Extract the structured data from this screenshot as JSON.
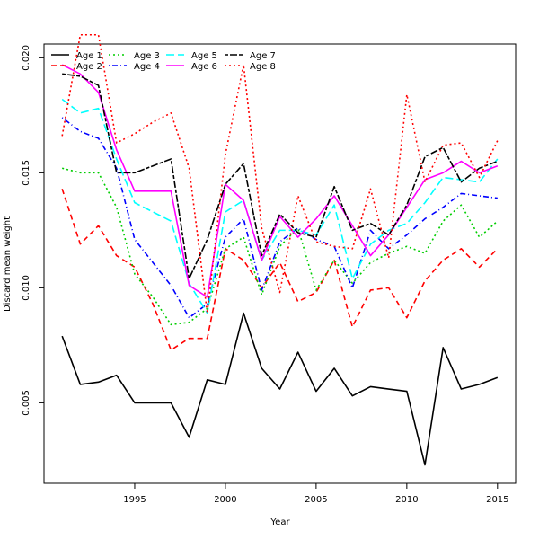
{
  "chart_data": {
    "type": "line",
    "title": "",
    "xlabel": "Year",
    "ylabel": "Discard mean weight",
    "xlim": [
      1990.0,
      2016.0
    ],
    "ylim": [
      0.0015,
      0.0206
    ],
    "xticks": [
      1995,
      2000,
      2005,
      2010,
      2015
    ],
    "xtick_labels": [
      "1995",
      "2000",
      "2005",
      "2010",
      "2015"
    ],
    "yticks": [
      0.005,
      0.01,
      0.015,
      0.02
    ],
    "ytick_labels": [
      "0.005",
      "0.010",
      "0.015",
      "0.020"
    ],
    "grid": false,
    "legend_position": "top-left",
    "x": [
      1991,
      1992,
      1993,
      1994,
      1995,
      1996,
      1997,
      1998,
      1999,
      2000,
      2001,
      2002,
      2003,
      2004,
      2005,
      2006,
      2007,
      2008,
      2009,
      2010,
      2011,
      2012,
      2013,
      2014,
      2015
    ],
    "series": [
      {
        "name": "Age 1",
        "color": "#000000",
        "dash": "solid",
        "values": [
          0.0079,
          0.0058,
          0.0059,
          0.0062,
          0.005,
          0.005,
          0.005,
          0.0035,
          0.006,
          0.0058,
          0.0089,
          0.0065,
          0.0056,
          0.0072,
          0.0055,
          0.0065,
          0.0053,
          0.0057,
          0.0056,
          0.0055,
          0.0023,
          0.0074,
          0.0056,
          0.0058,
          0.0061
        ]
      },
      {
        "name": "Age 2",
        "color": "#ff0000",
        "dash": "dashed",
        "values": [
          0.0143,
          0.0119,
          0.0127,
          0.0114,
          0.0109,
          0.0093,
          0.0073,
          0.0078,
          0.0078,
          0.0117,
          0.0112,
          0.01,
          0.0111,
          0.0094,
          0.0098,
          0.0112,
          0.0083,
          0.0099,
          0.01,
          0.0087,
          0.0103,
          0.0112,
          0.0117,
          0.0109,
          0.0117
        ]
      },
      {
        "name": "Age 3",
        "color": "#00cd00",
        "dash": "dotted",
        "values": [
          0.0152,
          0.015,
          0.015,
          0.0135,
          0.0106,
          0.0096,
          0.0084,
          0.0085,
          0.0091,
          0.0117,
          0.0122,
          0.0097,
          0.0118,
          0.0126,
          0.0099,
          0.0112,
          0.0102,
          0.0111,
          0.0115,
          0.0118,
          0.0115,
          0.0129,
          0.0136,
          0.0122,
          0.0129
        ]
      },
      {
        "name": "Age 4",
        "color": "#0000ff",
        "dash": "dashdot",
        "values": [
          0.0174,
          0.0168,
          0.0165,
          0.0152,
          0.0121,
          0.0111,
          0.0101,
          0.0087,
          0.0093,
          0.0122,
          0.013,
          0.0099,
          0.012,
          0.0126,
          0.0121,
          0.0118,
          0.01,
          0.0125,
          0.0117,
          0.0123,
          0.013,
          0.0135,
          0.0141,
          0.014,
          0.0139
        ]
      },
      {
        "name": "Age 5",
        "color": "#00ffff",
        "dash": "longdash",
        "values": [
          0.0182,
          0.0176,
          0.0178,
          0.0156,
          0.0137,
          0.0133,
          0.0129,
          0.0102,
          0.0089,
          0.0133,
          0.0138,
          0.0112,
          0.0125,
          0.0125,
          0.0123,
          0.0136,
          0.0104,
          0.0119,
          0.0125,
          0.0128,
          0.0137,
          0.0148,
          0.0147,
          0.0146,
          0.0156
        ]
      },
      {
        "name": "Age 6",
        "color": "#ff00ff",
        "dash": "solid",
        "values": [
          0.0197,
          0.0193,
          0.0185,
          0.016,
          0.0142,
          0.0142,
          0.0142,
          0.0101,
          0.0096,
          0.0145,
          0.0138,
          0.0112,
          0.0131,
          0.0122,
          0.013,
          0.014,
          0.0127,
          0.0114,
          0.0123,
          0.0135,
          0.0147,
          0.015,
          0.0155,
          0.015,
          0.0153
        ]
      },
      {
        "name": "Age 7",
        "color": "#000000",
        "dash": "twodash",
        "values": [
          0.0193,
          0.0192,
          0.0188,
          0.015,
          0.015,
          0.0153,
          0.0156,
          0.0104,
          0.0121,
          0.0145,
          0.0154,
          0.0114,
          0.0132,
          0.0124,
          0.0122,
          0.0144,
          0.0125,
          0.0128,
          0.0123,
          0.0136,
          0.0157,
          0.0161,
          0.0146,
          0.0152,
          0.0155
        ]
      },
      {
        "name": "Age 8",
        "color": "#ff0000",
        "dash": "dotted",
        "values": [
          0.0166,
          0.021,
          0.021,
          0.0163,
          0.0167,
          0.0172,
          0.0176,
          0.0152,
          0.0089,
          0.0158,
          0.0197,
          0.0126,
          0.0098,
          0.014,
          0.012,
          0.0118,
          0.0117,
          0.0143,
          0.0113,
          0.0184,
          0.0146,
          0.0162,
          0.0163,
          0.0148,
          0.0164
        ]
      }
    ]
  }
}
